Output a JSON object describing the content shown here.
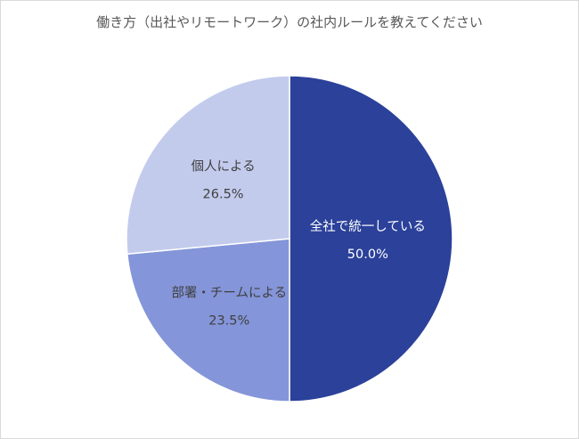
{
  "chart_data": {
    "type": "pie",
    "title": "働き方（出社やリモートワーク）の社内ルールを教えてください",
    "start_angle_deg": 0,
    "direction": "clockwise",
    "legend": "none",
    "slices": [
      {
        "label": "全社で統一している",
        "value": 50.0,
        "display": "50.0%",
        "color": "#2b419a",
        "text_color": "#ffffff"
      },
      {
        "label": "部署・チームによる",
        "value": 23.5,
        "display": "23.5%",
        "color": "#8495d9",
        "text_color": "#404040"
      },
      {
        "label": "個人による",
        "value": 26.5,
        "display": "26.5%",
        "color": "#c3cbed",
        "text_color": "#404040"
      }
    ]
  }
}
